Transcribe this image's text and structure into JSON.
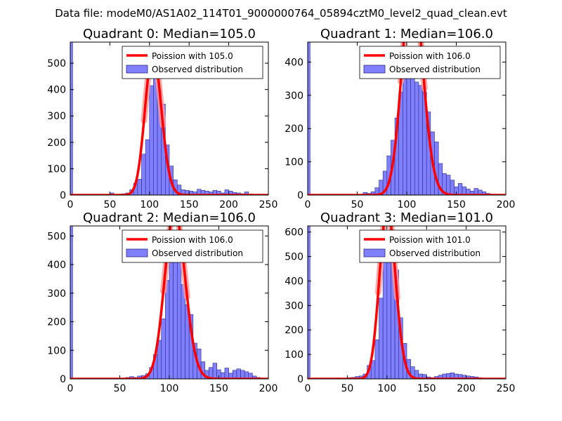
{
  "figure_title": "Data file: modeM0/AS1A02_114T01_9000000764_05894cztM0_level2_quad_clean.evt",
  "colors": {
    "bar_fill": "#8080ff",
    "bar_edge": "#2a2a8a",
    "fit_line": "#ff0000",
    "fit_peak": "#ff9a9a"
  },
  "chart_data": [
    {
      "type": "bar",
      "title": "Quadrant 0: Median=105.0",
      "median": 105.0,
      "xlim": [
        0,
        250
      ],
      "ylim": [
        0,
        580
      ],
      "xticks": [
        0,
        50,
        100,
        150,
        200,
        250
      ],
      "yticks": [
        0,
        100,
        200,
        300,
        400,
        500
      ],
      "bin_width": 5,
      "edge_bar": {
        "x": 0,
        "value": 580
      },
      "bins_x": [
        50,
        55,
        60,
        65,
        70,
        75,
        80,
        85,
        90,
        95,
        100,
        105,
        110,
        115,
        120,
        125,
        130,
        135,
        140,
        145,
        150,
        155,
        160,
        165,
        170,
        175,
        180,
        185,
        190,
        195,
        200,
        205,
        210,
        215,
        220,
        225,
        230
      ],
      "bins_values": [
        8,
        2,
        3,
        5,
        8,
        20,
        45,
        60,
        155,
        210,
        415,
        470,
        400,
        345,
        190,
        110,
        58,
        38,
        20,
        18,
        15,
        12,
        22,
        18,
        15,
        12,
        18,
        15,
        8,
        20,
        15,
        10,
        8,
        5,
        12,
        4,
        2
      ],
      "legend": [
        "Poission with 105.0",
        "Observed distribution"
      ],
      "fit_label": "Poission with 105.0"
    },
    {
      "type": "bar",
      "title": "Quadrant 1: Median=106.0",
      "median": 106.0,
      "xlim": [
        0,
        200
      ],
      "ylim": [
        0,
        460
      ],
      "xticks": [
        0,
        50,
        100,
        150,
        200
      ],
      "yticks": [
        0,
        100,
        200,
        300,
        400
      ],
      "bin_width": 4,
      "edge_bar": {
        "x": 0,
        "value": 460
      },
      "bins_x": [
        56,
        60,
        64,
        68,
        72,
        76,
        80,
        84,
        88,
        92,
        96,
        100,
        104,
        108,
        112,
        116,
        120,
        124,
        128,
        132,
        136,
        140,
        144,
        148,
        152,
        156,
        160,
        164,
        168,
        172,
        176,
        180
      ],
      "bins_values": [
        8,
        5,
        10,
        22,
        45,
        72,
        118,
        165,
        232,
        310,
        380,
        430,
        410,
        340,
        330,
        310,
        250,
        190,
        160,
        95,
        65,
        60,
        45,
        25,
        35,
        25,
        18,
        12,
        20,
        15,
        10,
        5
      ],
      "legend": [
        "Poission with 106.0",
        "Observed distribution"
      ],
      "fit_label": "Poission with 106.0"
    },
    {
      "type": "bar",
      "title": "Quadrant 2: Median=106.0",
      "median": 106.0,
      "xlim": [
        0,
        200
      ],
      "ylim": [
        0,
        535
      ],
      "xticks": [
        0,
        50,
        100,
        150,
        200
      ],
      "yticks": [
        0,
        100,
        200,
        300,
        400,
        500
      ],
      "bin_width": 4,
      "edge_bar": {
        "x": 0,
        "value": 535
      },
      "bins_x": [
        56,
        60,
        64,
        68,
        72,
        76,
        80,
        84,
        88,
        92,
        96,
        100,
        104,
        108,
        112,
        116,
        120,
        124,
        128,
        132,
        136,
        140,
        144,
        148,
        152,
        156,
        160,
        164,
        168,
        172,
        176,
        180,
        184,
        188
      ],
      "bins_values": [
        5,
        8,
        5,
        10,
        12,
        18,
        40,
        85,
        135,
        210,
        345,
        410,
        515,
        480,
        330,
        260,
        225,
        125,
        105,
        60,
        30,
        40,
        55,
        32,
        22,
        38,
        20,
        30,
        35,
        30,
        25,
        20,
        10,
        5
      ],
      "legend": [
        "Poission with 106.0",
        "Observed distribution"
      ],
      "fit_label": "Poission with 106.0"
    },
    {
      "type": "bar",
      "title": "Quadrant 3: Median=101.0",
      "median": 101.0,
      "xlim": [
        0,
        250
      ],
      "ylim": [
        0,
        625
      ],
      "xticks": [
        0,
        50,
        100,
        150,
        200,
        250
      ],
      "yticks": [
        0,
        100,
        200,
        300,
        400,
        500,
        600
      ],
      "bin_width": 5,
      "edge_bar": {
        "x": 0,
        "value": 625
      },
      "bins_x": [
        35,
        40,
        45,
        50,
        55,
        60,
        65,
        70,
        75,
        80,
        85,
        90,
        95,
        100,
        105,
        110,
        115,
        120,
        125,
        130,
        135,
        140,
        145,
        150,
        155,
        160,
        165,
        170,
        175,
        180,
        185,
        190,
        195,
        200,
        205,
        210,
        215
      ],
      "bins_values": [
        4,
        2,
        3,
        5,
        6,
        10,
        12,
        20,
        55,
        75,
        160,
        330,
        480,
        600,
        520,
        445,
        250,
        145,
        80,
        50,
        35,
        20,
        18,
        8,
        5,
        10,
        15,
        20,
        22,
        25,
        20,
        18,
        15,
        12,
        10,
        8,
        5
      ],
      "legend": [
        "Poission with 101.0",
        "Observed distribution"
      ],
      "fit_label": "Poission with 101.0"
    }
  ]
}
